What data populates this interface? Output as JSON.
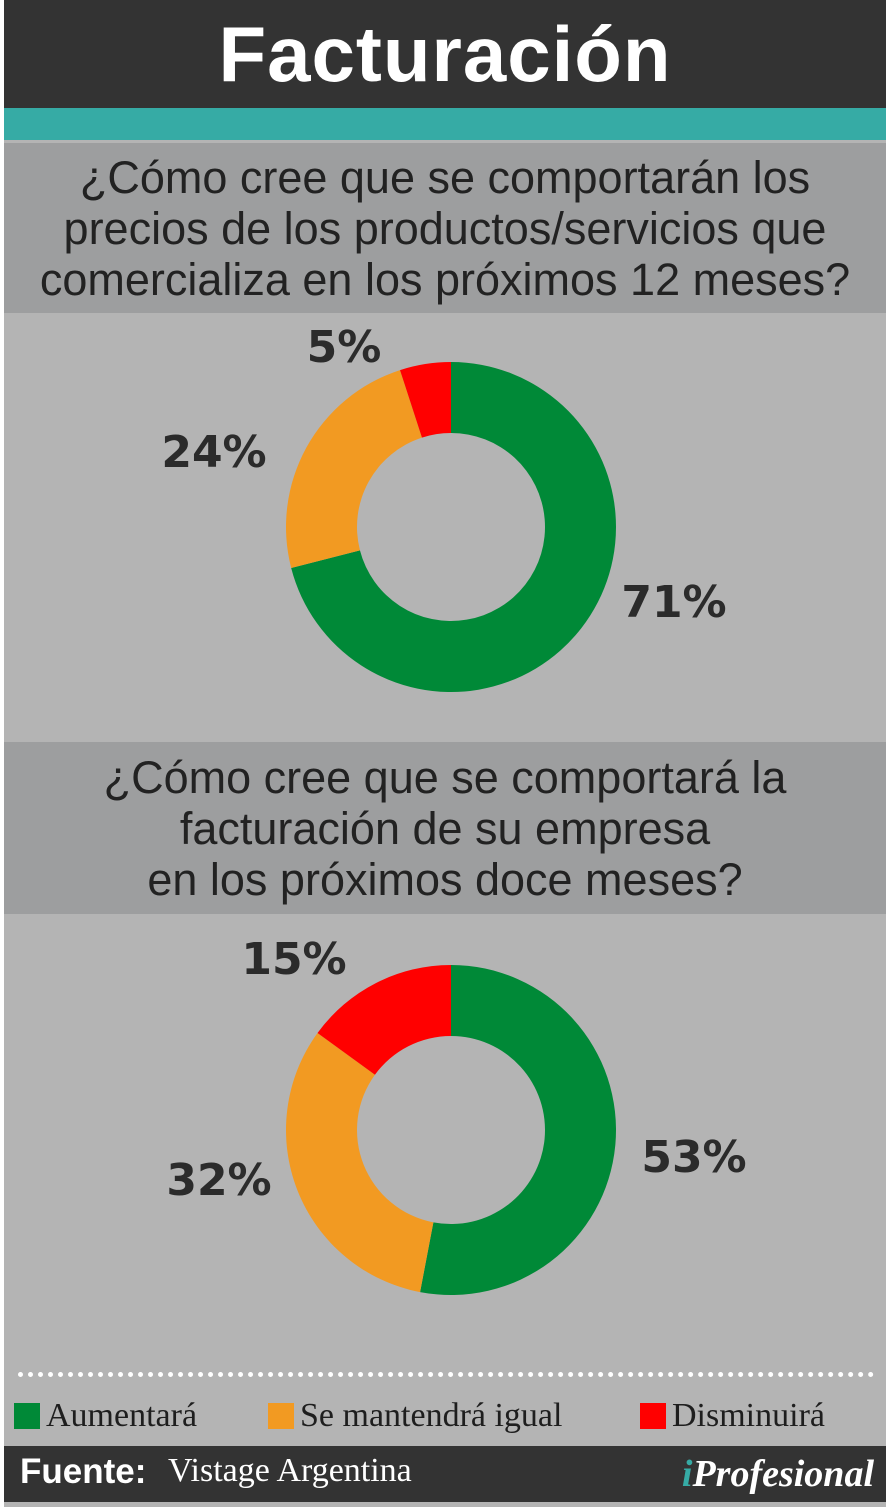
{
  "header": {
    "title": "Facturación"
  },
  "colors": {
    "aumentara": "#008937",
    "mantendra": "#f29a22",
    "disminuira": "#ff0000"
  },
  "chart_data": [
    {
      "type": "pie",
      "title": "¿Cómo cree que se comportarán los\nprecios de los productos/servicios que\ncomercializa en los próximos 12 meses?",
      "categories": [
        "Aumentará",
        "Se mantendrá igual",
        "Disminuirá"
      ],
      "values": [
        71,
        24,
        5
      ],
      "labels": [
        "71%",
        "24%",
        "5%"
      ]
    },
    {
      "type": "pie",
      "title": "¿Cómo cree que se comportará la\nfacturación de su empresa\nen los próximos doce meses?",
      "categories": [
        "Aumentará",
        "Se mantendrá igual",
        "Disminuirá"
      ],
      "values": [
        53,
        32,
        15
      ],
      "labels": [
        "53%",
        "32%",
        "15%"
      ]
    }
  ],
  "legend": {
    "items": [
      {
        "label": "Aumentará",
        "color": "#008937"
      },
      {
        "label": "Se mantendrá igual",
        "color": "#f29a22"
      },
      {
        "label": "Disminuirá",
        "color": "#ff0000"
      }
    ]
  },
  "footer": {
    "source_label": "Fuente:",
    "source_value": "Vistage Argentina",
    "brand": "iProfesional",
    "brand_i": "i",
    "brand_rest": "Profesional"
  }
}
